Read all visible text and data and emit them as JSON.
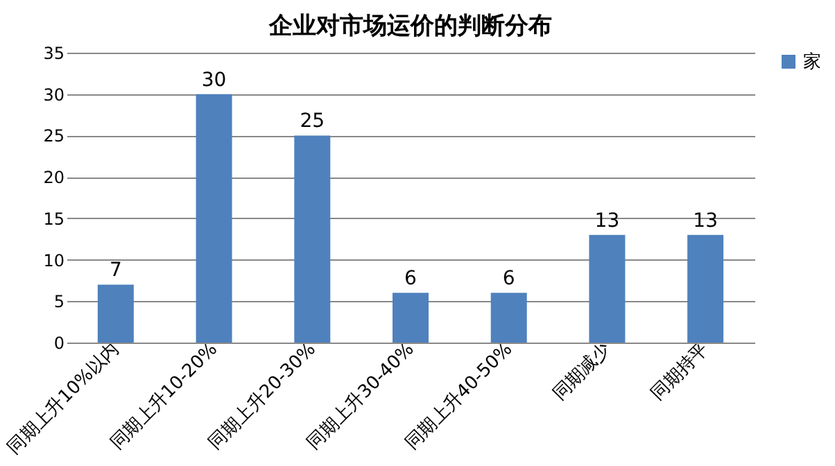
{
  "chart_data": {
    "type": "bar",
    "title": "企业对市场运价的判断分布",
    "categories": [
      "同期上升10%以内",
      "同期上升10-20%",
      "同期上升20-30%",
      "同期上升30-40%",
      "同期上升40-50%",
      "同期减少",
      "同期持平"
    ],
    "series": [
      {
        "name": "家",
        "color": "#4f81bd",
        "values": [
          7,
          30,
          25,
          6,
          6,
          13,
          13
        ]
      }
    ],
    "ylim": [
      0,
      35
    ],
    "yticks": [
      0,
      5,
      10,
      15,
      20,
      25,
      30,
      35
    ],
    "grid": "y",
    "legend": "right",
    "data_labels": true
  }
}
